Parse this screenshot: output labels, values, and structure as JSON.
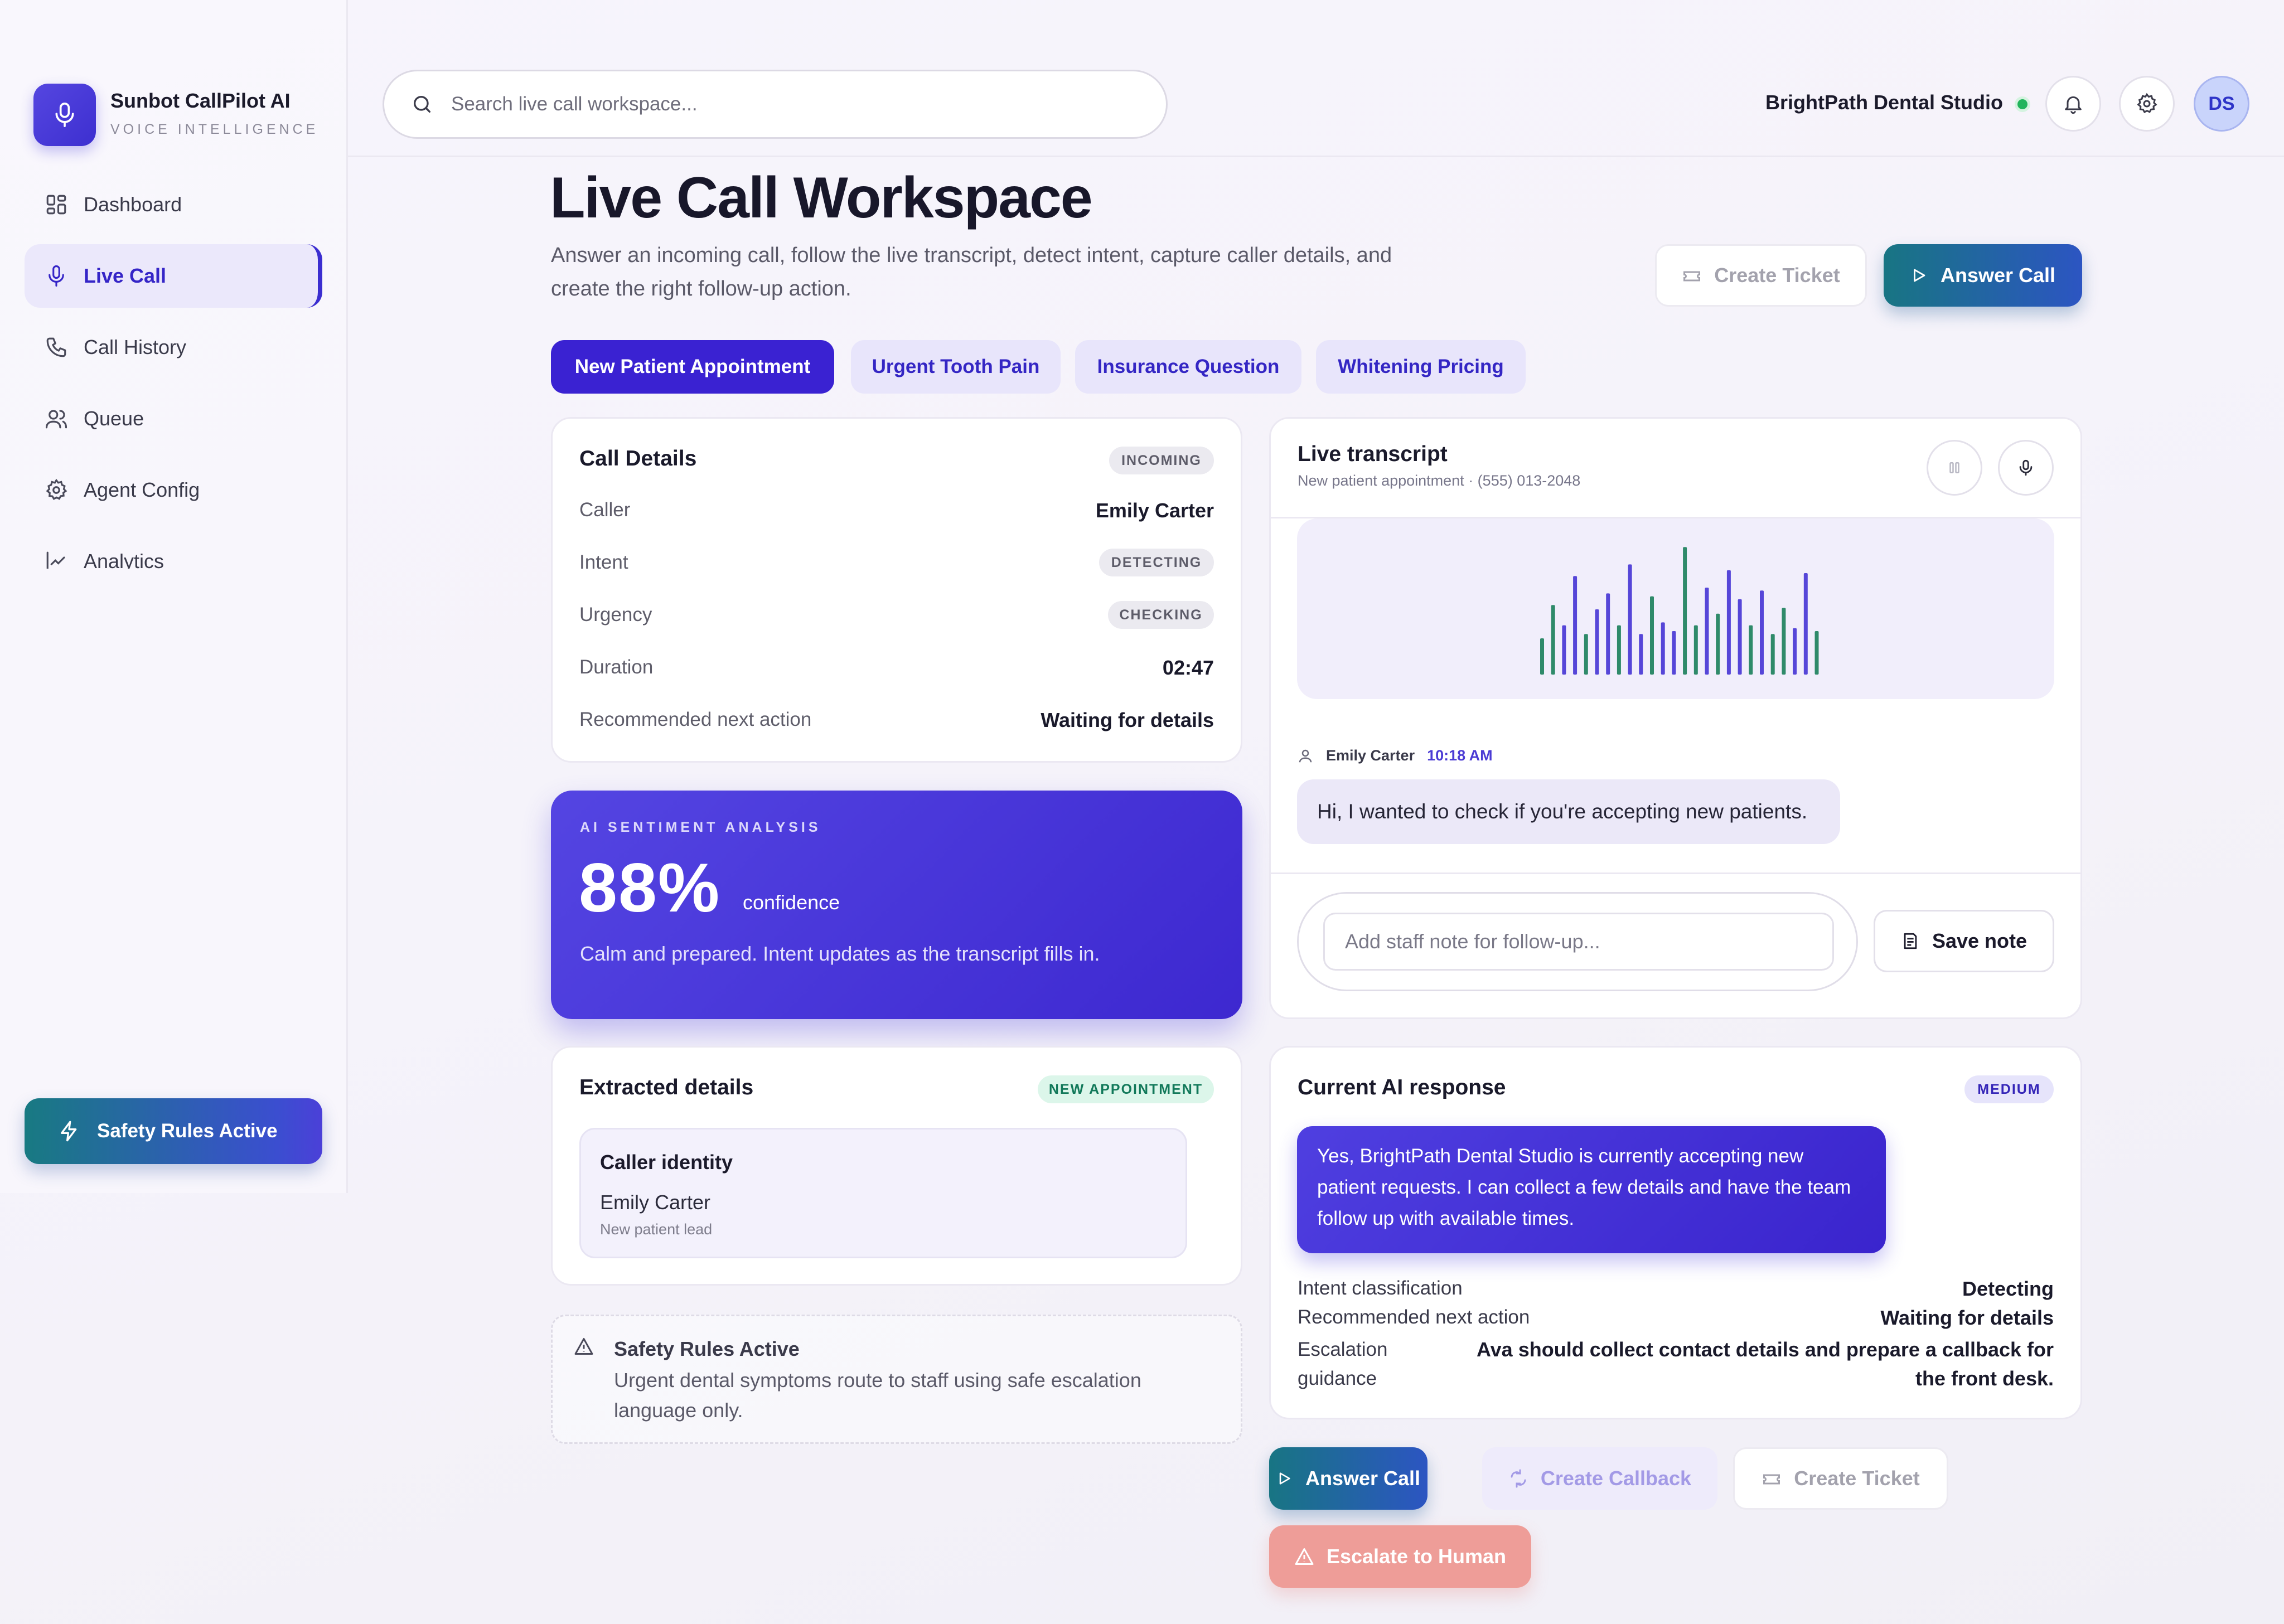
{
  "brand": {
    "name": "Sunbot CallPilot AI",
    "tagline": "VOICE INTELLIGENCE"
  },
  "sidebar": {
    "items": [
      {
        "label": "Dashboard",
        "icon": "dashboard-icon",
        "active": false
      },
      {
        "label": "Live Call",
        "icon": "mic-icon",
        "active": true
      },
      {
        "label": "Call History",
        "icon": "phone-icon",
        "active": false
      },
      {
        "label": "Queue",
        "icon": "users-icon",
        "active": false
      },
      {
        "label": "Agent Config",
        "icon": "gear-icon",
        "active": false
      },
      {
        "label": "Analytics",
        "icon": "chart-icon",
        "active": false
      }
    ],
    "safety_button": "Safety Rules Active"
  },
  "topbar": {
    "search_placeholder": "Search live call workspace...",
    "org_name": "BrightPath Dental Studio",
    "avatar_initials": "DS"
  },
  "header": {
    "title": "Live Call Workspace",
    "description": "Answer an incoming call, follow the live transcript, detect intent, capture caller details, and create the right follow-up action.",
    "create_ticket": "Create Ticket",
    "answer_call": "Answer Call"
  },
  "scenarios": [
    {
      "label": "New Patient Appointment",
      "active": true
    },
    {
      "label": "Urgent Tooth Pain",
      "active": false
    },
    {
      "label": "Insurance Question",
      "active": false
    },
    {
      "label": "Whitening Pricing",
      "active": false
    }
  ],
  "call_details": {
    "title": "Call Details",
    "status_badge": "INCOMING",
    "caller_label": "Caller",
    "caller_value": "Emily Carter",
    "intent_label": "Intent",
    "intent_value": "DETECTING",
    "urgency_label": "Urgency",
    "urgency_value": "CHECKING",
    "duration_label": "Duration",
    "duration_value": "02:47",
    "next_action_label": "Recommended next action",
    "next_action_value": "Waiting for details"
  },
  "sentiment": {
    "label": "AI SENTIMENT ANALYSIS",
    "value": "88%",
    "unit": "confidence",
    "confidence_fraction": 0.88,
    "description": "Calm and prepared. Intent updates as the transcript fills in."
  },
  "transcript": {
    "title": "Live transcript",
    "subtitle": "New patient appointment · (555) 013-2048",
    "waveform_levels": [
      0.25,
      0.48,
      0.34,
      0.68,
      0.28,
      0.45,
      0.56,
      0.34,
      0.76,
      0.28,
      0.54,
      0.36,
      0.3,
      0.88,
      0.34,
      0.6,
      0.42,
      0.72,
      0.52,
      0.34,
      0.58,
      0.28,
      0.46,
      0.32,
      0.7,
      0.3
    ],
    "waveform_colors": [
      "#5646d8",
      "#2f8a6a"
    ],
    "message": {
      "speaker": "Emily Carter",
      "time": "10:18 AM",
      "text": "Hi, I wanted to check if you're accepting new patients."
    },
    "note_placeholder": "Add staff note for follow-up...",
    "save_note": "Save note"
  },
  "extracted": {
    "title": "Extracted details",
    "badge": "NEW APPOINTMENT",
    "section_title": "Caller identity",
    "name": "Emily Carter",
    "sub": "New patient lead"
  },
  "safety_notice": {
    "title": "Safety Rules Active",
    "text": "Urgent dental symptoms route to staff using safe escalation language only."
  },
  "ai_response": {
    "title": "Current AI response",
    "badge": "MEDIUM",
    "text": "Yes, BrightPath Dental Studio is currently accepting new patient requests. I can collect a few details and have the team follow up with available times.",
    "intent_label": "Intent classification",
    "intent_value": "Detecting",
    "next_label": "Recommended next action",
    "next_value": "Waiting for details",
    "escalation_label": "Escalation guidance",
    "escalation_value": "Ava should collect contact details and prepare a callback for the front desk."
  },
  "actions": {
    "answer_call": "Answer Call",
    "create_callback": "Create Callback",
    "create_ticket": "Create Ticket",
    "escalate": "Escalate to Human"
  },
  "colors": {
    "accent": "#3a22d2",
    "teal": "#187583",
    "online": "#21b45c",
    "danger_soft": "#ee9d98"
  }
}
